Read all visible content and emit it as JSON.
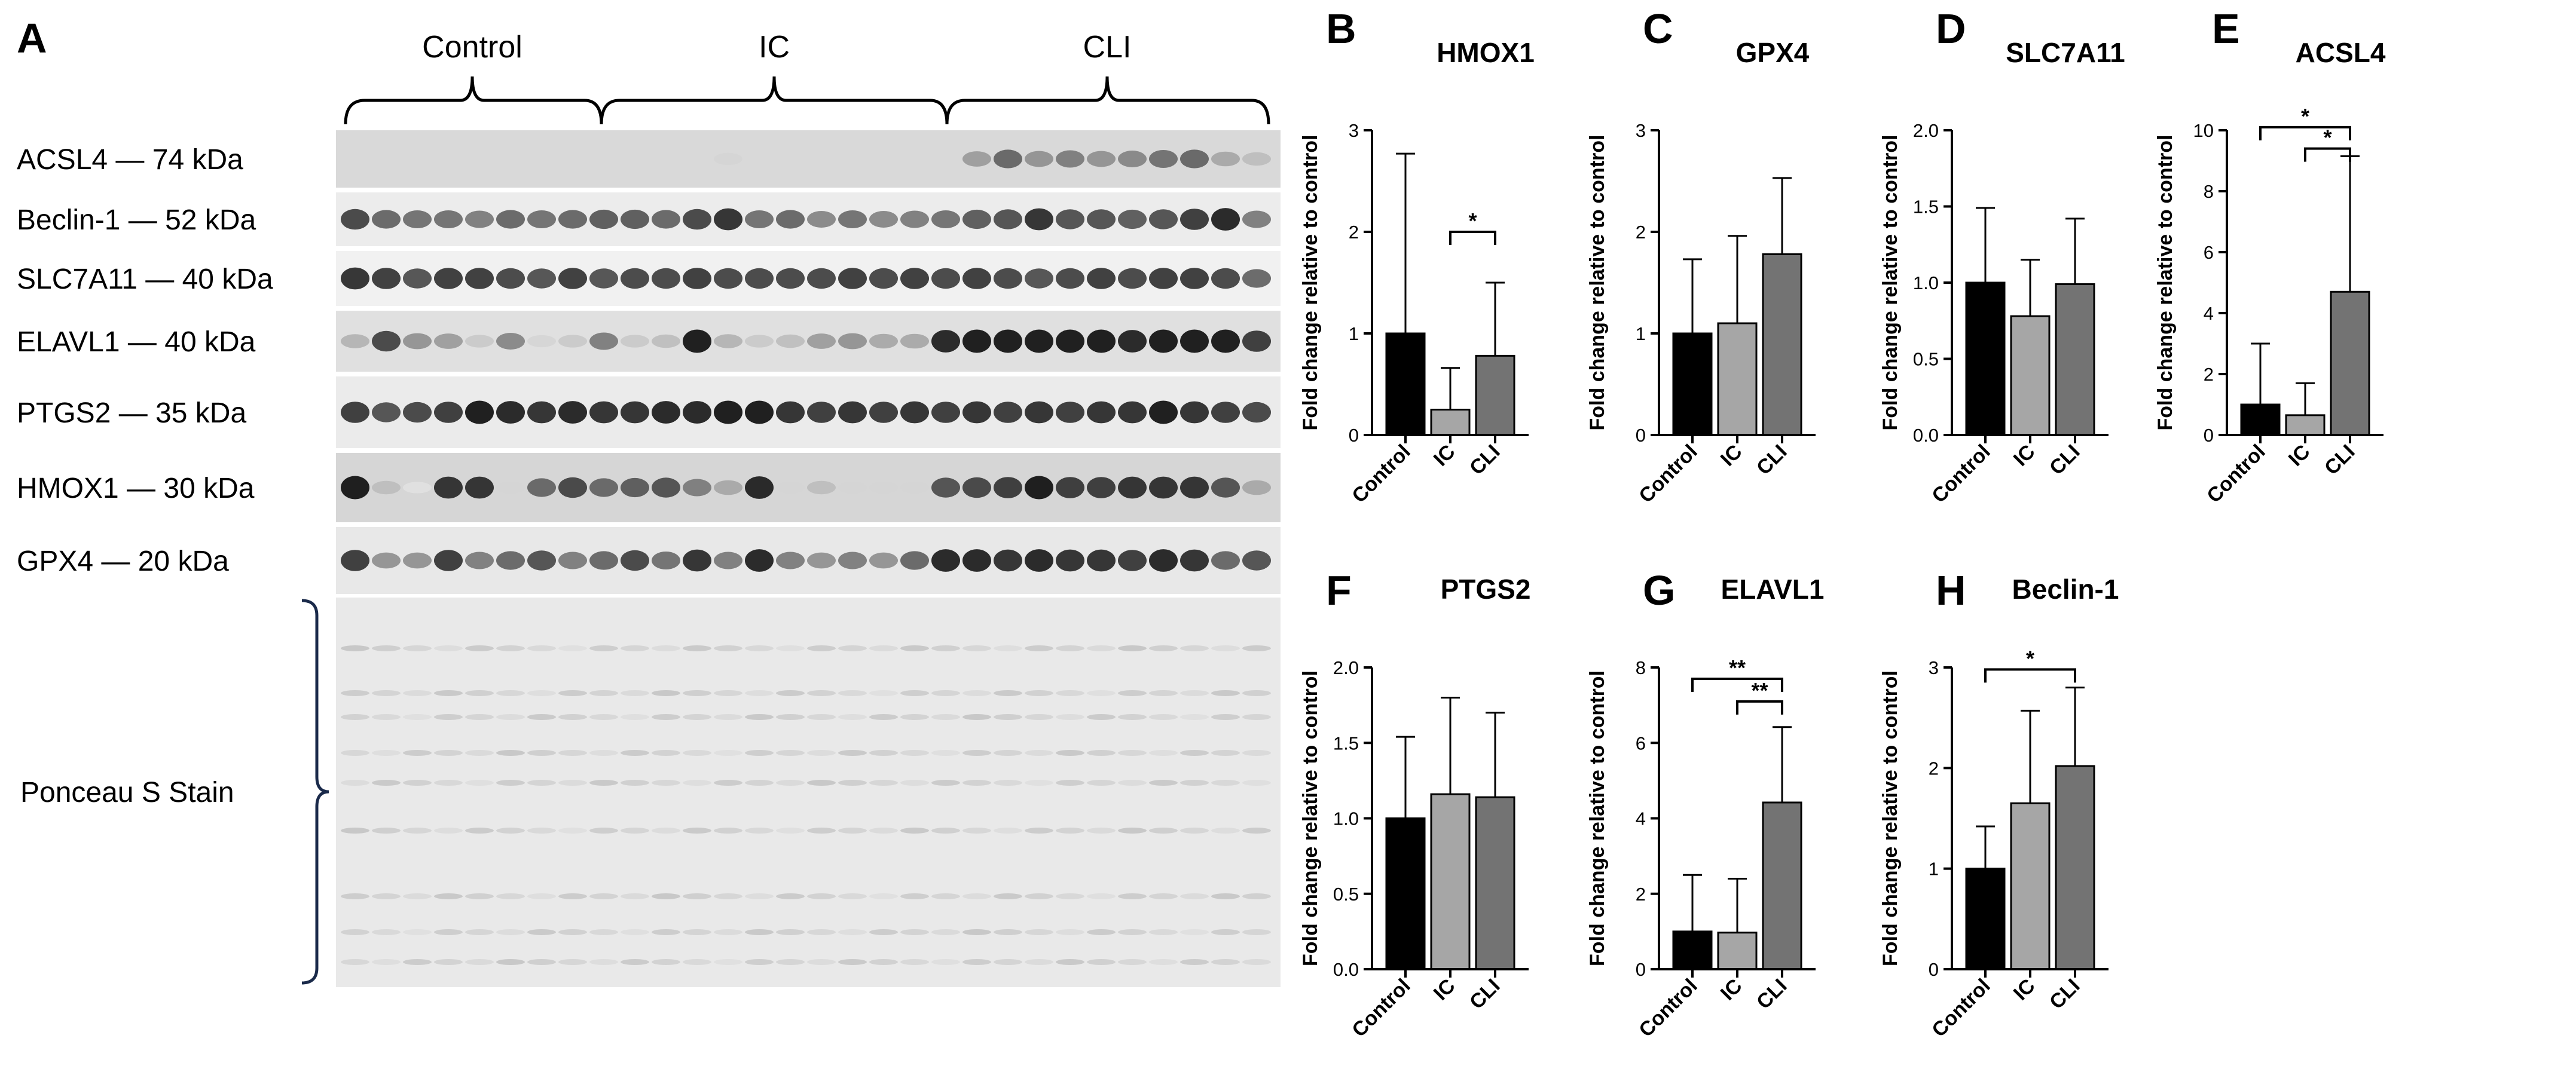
{
  "blot": {
    "letter": "A",
    "groups": [
      "Control",
      "IC",
      "CLI"
    ],
    "rows": [
      {
        "label": "ACSL4 — 74 kDa",
        "bg": "#d9d9d9",
        "bands": [
          0,
          0,
          0,
          0,
          0,
          0,
          0,
          0,
          0,
          0,
          0,
          0,
          0.1,
          0,
          0,
          0,
          0,
          0,
          0,
          0,
          0.35,
          0.6,
          0.4,
          0.5,
          0.4,
          0.45,
          0.55,
          0.6,
          0.3,
          0.2
        ]
      },
      {
        "label": "Beclin-1 — 52 kDa",
        "bg": "#ececec",
        "bands": [
          0.75,
          0.6,
          0.55,
          0.55,
          0.5,
          0.6,
          0.55,
          0.6,
          0.65,
          0.65,
          0.6,
          0.75,
          0.85,
          0.55,
          0.6,
          0.45,
          0.55,
          0.45,
          0.5,
          0.55,
          0.65,
          0.7,
          0.85,
          0.7,
          0.7,
          0.65,
          0.7,
          0.8,
          0.9,
          0.5
        ]
      },
      {
        "label": "SLC7A11 — 40 kDa",
        "bg": "#f1f1f1",
        "bands": [
          0.85,
          0.8,
          0.7,
          0.8,
          0.8,
          0.75,
          0.7,
          0.8,
          0.7,
          0.75,
          0.75,
          0.8,
          0.75,
          0.75,
          0.75,
          0.75,
          0.8,
          0.75,
          0.8,
          0.75,
          0.8,
          0.75,
          0.7,
          0.75,
          0.8,
          0.75,
          0.8,
          0.8,
          0.75,
          0.6
        ]
      },
      {
        "label": "ELAVL1 — 40 kDa",
        "bg": "#e0e0e0",
        "bands": [
          0.25,
          0.75,
          0.4,
          0.35,
          0.15,
          0.45,
          0.1,
          0.15,
          0.5,
          0.15,
          0.2,
          0.95,
          0.25,
          0.15,
          0.2,
          0.35,
          0.4,
          0.3,
          0.3,
          0.9,
          0.95,
          0.95,
          0.95,
          0.95,
          0.95,
          0.9,
          0.95,
          0.95,
          0.95,
          0.8
        ]
      },
      {
        "label": "PTGS2 — 35 kDa",
        "bg": "#ebebeb",
        "bands": [
          0.8,
          0.7,
          0.75,
          0.8,
          0.95,
          0.9,
          0.85,
          0.9,
          0.85,
          0.85,
          0.9,
          0.9,
          0.95,
          0.95,
          0.85,
          0.8,
          0.85,
          0.8,
          0.85,
          0.8,
          0.85,
          0.8,
          0.85,
          0.8,
          0.85,
          0.85,
          0.95,
          0.85,
          0.8,
          0.75
        ]
      },
      {
        "label": "HMOX1 — 30 kDa",
        "bg": "#d6d6d6",
        "bands": [
          0.95,
          0.2,
          0.05,
          0.85,
          0.85,
          0.1,
          0.6,
          0.75,
          0.6,
          0.65,
          0.7,
          0.5,
          0.3,
          0.9,
          0.1,
          0.2,
          0.1,
          0.1,
          0.1,
          0.7,
          0.75,
          0.8,
          0.95,
          0.8,
          0.8,
          0.85,
          0.85,
          0.85,
          0.7,
          0.3
        ]
      },
      {
        "label": "GPX4 — 20 kDa",
        "bg": "#e8e8e8",
        "bands": [
          0.8,
          0.4,
          0.4,
          0.8,
          0.5,
          0.6,
          0.7,
          0.5,
          0.6,
          0.75,
          0.55,
          0.85,
          0.5,
          0.9,
          0.5,
          0.4,
          0.5,
          0.4,
          0.6,
          0.9,
          0.9,
          0.85,
          0.9,
          0.85,
          0.85,
          0.8,
          0.9,
          0.85,
          0.6,
          0.7
        ]
      }
    ],
    "stain_label": "Ponceau S Stain"
  },
  "chart_data": [
    {
      "id": "B",
      "type": "bar",
      "title": "HMOX1",
      "ylabel": "Fold change relative to control",
      "categories": [
        "Control",
        "IC",
        "CLI"
      ],
      "values": [
        1.0,
        0.25,
        0.78
      ],
      "errors": [
        1.77,
        0.41,
        0.72
      ],
      "ylim": [
        0,
        3
      ],
      "yticks": [
        "0",
        "1",
        "2",
        "3"
      ],
      "significance": [
        {
          "from": 1,
          "to": 2,
          "label": "*",
          "y": 2.0
        }
      ]
    },
    {
      "id": "C",
      "type": "bar",
      "title": "GPX4",
      "ylabel": "Fold change relative to control",
      "categories": [
        "Control",
        "IC",
        "CLI"
      ],
      "values": [
        1.0,
        1.1,
        1.78
      ],
      "errors": [
        0.73,
        0.86,
        0.75
      ],
      "ylim": [
        0,
        3
      ],
      "yticks": [
        "0",
        "1",
        "2",
        "3"
      ],
      "significance": []
    },
    {
      "id": "D",
      "type": "bar",
      "title": "SLC7A11",
      "ylabel": "Fold change relative to control",
      "categories": [
        "Control",
        "IC",
        "CLI"
      ],
      "values": [
        1.0,
        0.78,
        0.99
      ],
      "errors": [
        0.49,
        0.37,
        0.43
      ],
      "ylim": [
        0,
        2
      ],
      "yticks": [
        "0.0",
        "0.5",
        "1.0",
        "1.5",
        "2.0"
      ],
      "significance": []
    },
    {
      "id": "E",
      "type": "bar",
      "title": "ACSL4",
      "ylabel": "Fold change relative to control",
      "categories": [
        "Control",
        "IC",
        "CLI"
      ],
      "values": [
        1.0,
        0.65,
        4.7
      ],
      "errors": [
        2.0,
        1.05,
        4.45
      ],
      "ylim": [
        0,
        10
      ],
      "yticks": [
        "0",
        "2",
        "4",
        "6",
        "8",
        "10"
      ],
      "significance": [
        {
          "from": 0,
          "to": 2,
          "label": "*",
          "y": 10.1
        },
        {
          "from": 1,
          "to": 2,
          "label": "*",
          "y": 9.4
        }
      ]
    },
    {
      "id": "F",
      "type": "bar",
      "title": "PTGS2",
      "ylabel": "Fold change relative to control",
      "categories": [
        "Control",
        "IC",
        "CLI"
      ],
      "values": [
        1.0,
        1.16,
        1.14
      ],
      "errors": [
        0.54,
        0.64,
        0.56
      ],
      "ylim": [
        0,
        2
      ],
      "yticks": [
        "0.0",
        "0.5",
        "1.0",
        "1.5",
        "2.0"
      ],
      "significance": []
    },
    {
      "id": "G",
      "type": "bar",
      "title": "ELAVL1",
      "ylabel": "Fold change relative to control",
      "categories": [
        "Control",
        "IC",
        "CLI"
      ],
      "values": [
        1.0,
        0.97,
        4.42
      ],
      "errors": [
        1.5,
        1.43,
        2.0
      ],
      "ylim": [
        0,
        8
      ],
      "yticks": [
        "0",
        "2",
        "4",
        "6",
        "8"
      ],
      "significance": [
        {
          "from": 0,
          "to": 2,
          "label": "**",
          "y": 7.7
        },
        {
          "from": 1,
          "to": 2,
          "label": "**",
          "y": 7.1
        }
      ]
    },
    {
      "id": "H",
      "type": "bar",
      "title": "Beclin-1",
      "ylabel": "Fold change relative to control",
      "categories": [
        "Control",
        "IC",
        "CLI"
      ],
      "values": [
        1.0,
        1.65,
        2.02
      ],
      "errors": [
        0.42,
        0.92,
        0.78
      ],
      "ylim": [
        0,
        3
      ],
      "yticks": [
        "0",
        "1",
        "2",
        "3"
      ],
      "significance": [
        {
          "from": 0,
          "to": 2,
          "label": "*",
          "y": 2.98
        }
      ]
    }
  ],
  "colors": {
    "Control": "#000000",
    "IC": "#a6a6a6",
    "CLI": "#737373"
  }
}
